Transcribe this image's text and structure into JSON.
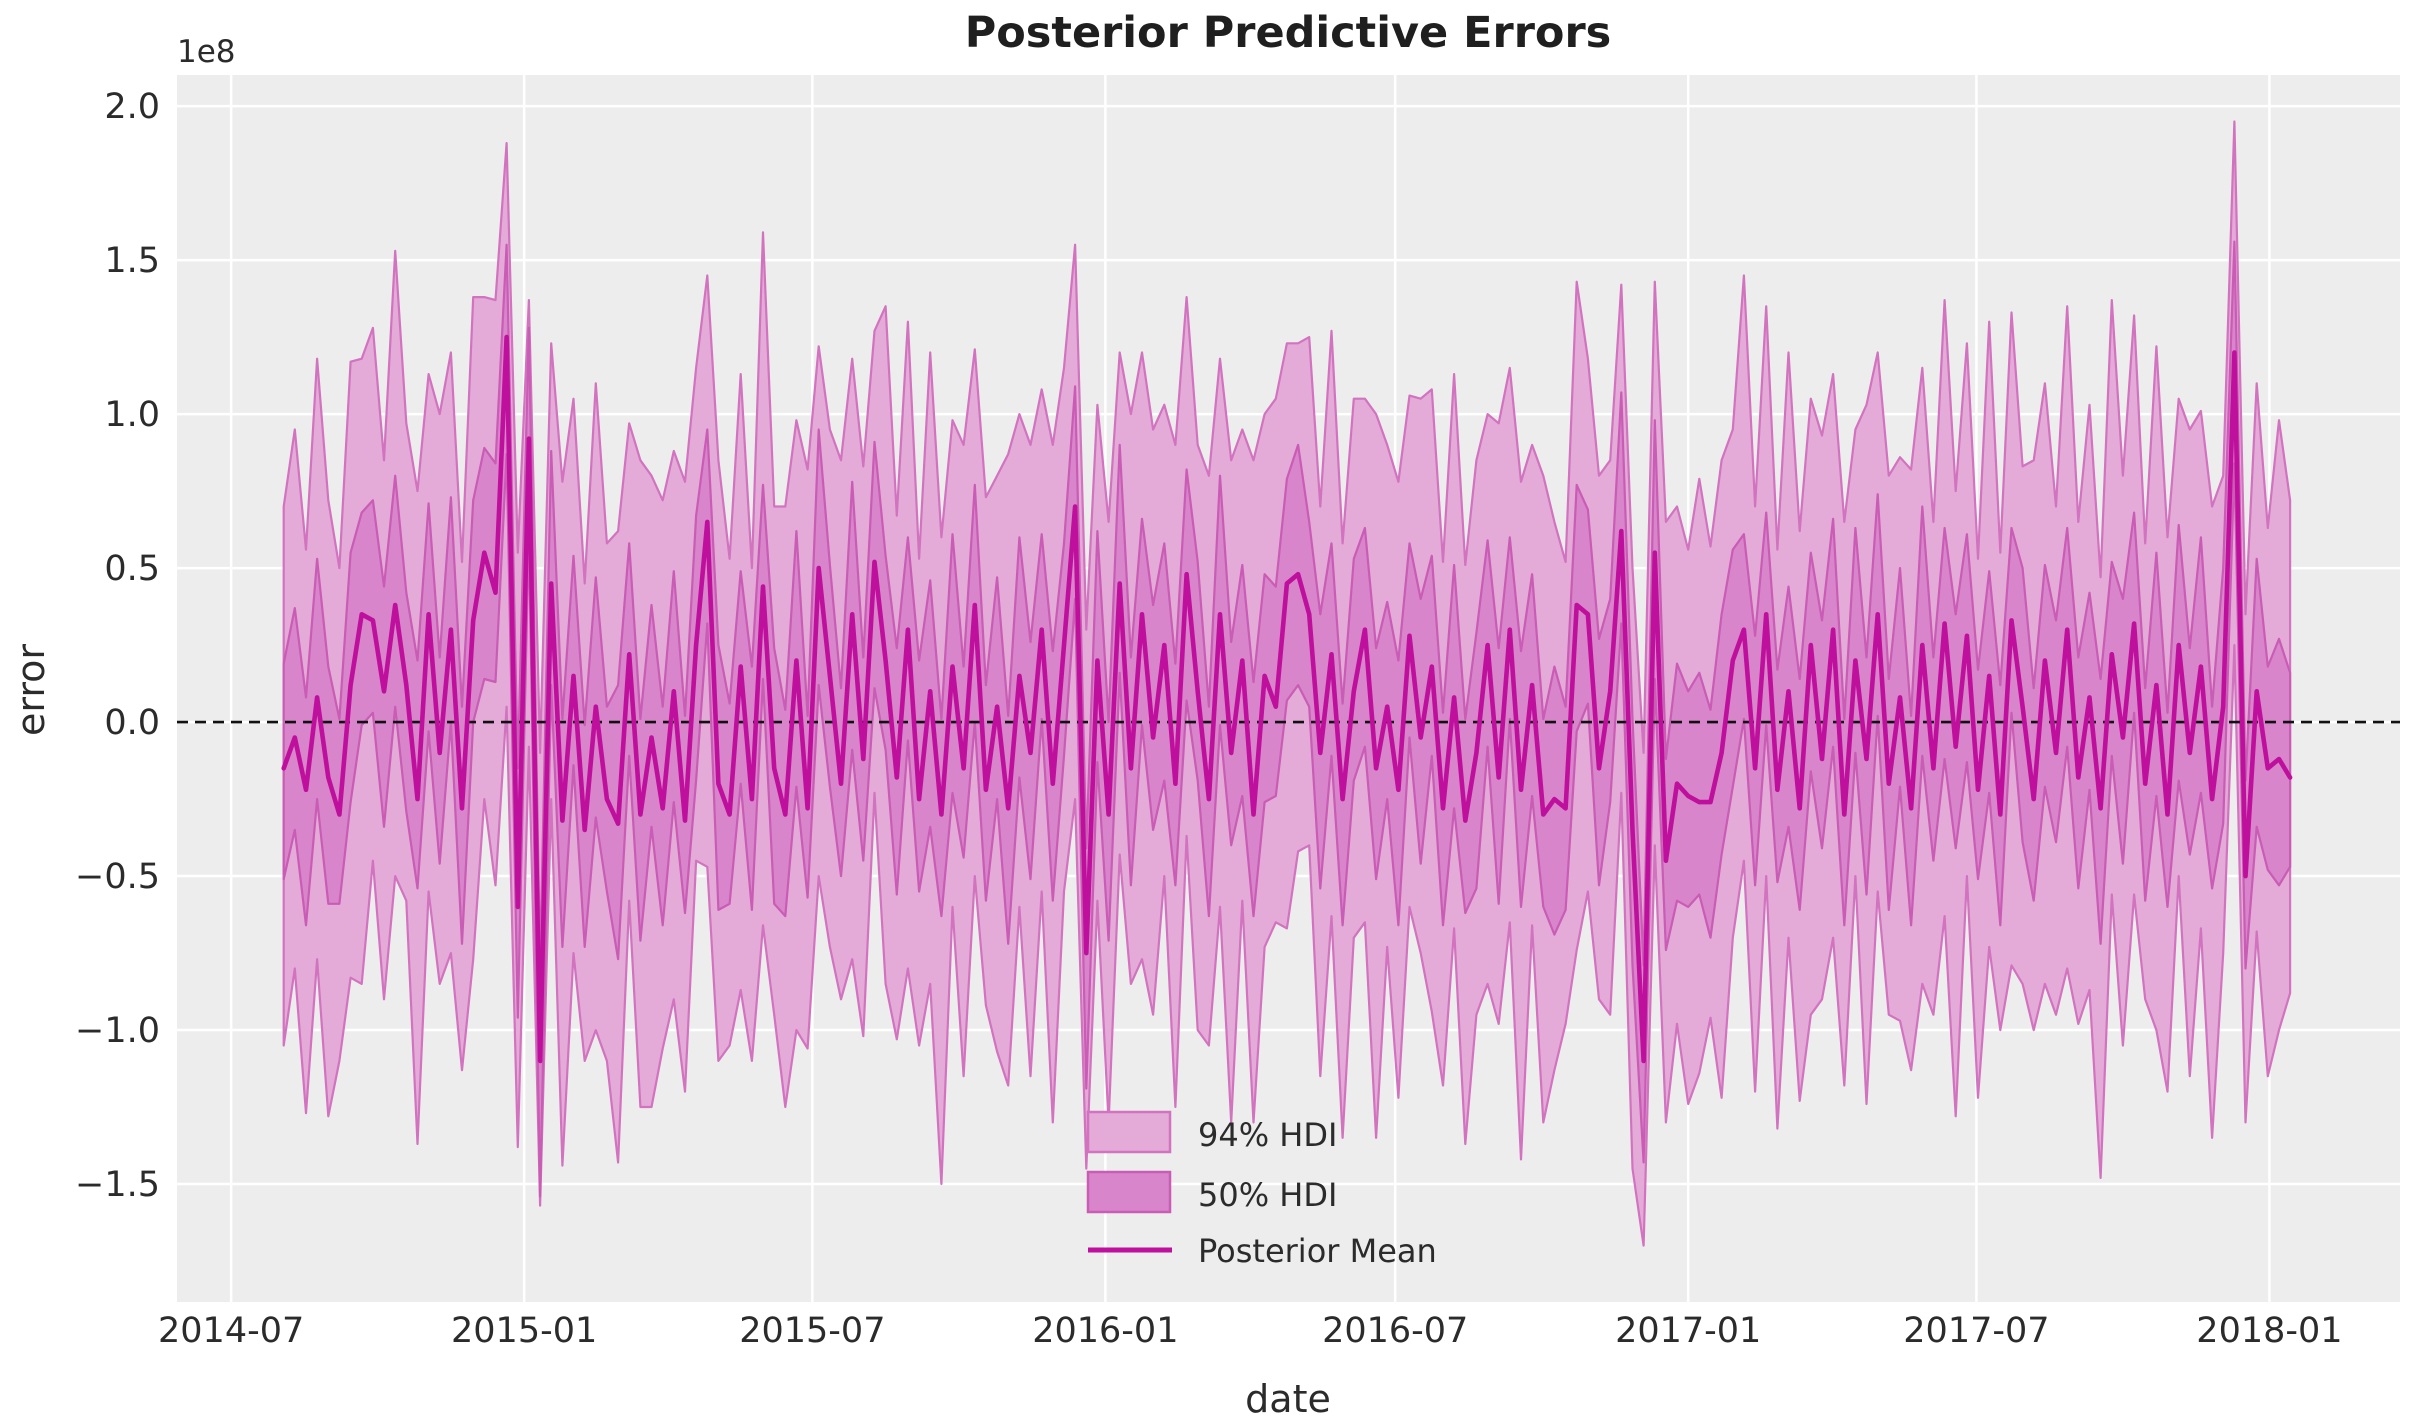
{
  "chart_data": {
    "type": "area",
    "title": "Posterior Predictive Errors",
    "xlabel": "date",
    "ylabel": "error",
    "y_offset_text": "1e8",
    "y_scale_factor": 100000000,
    "axis": {
      "x_min": "2014-05-28",
      "x_max": "2018-03-24",
      "y_min": -1.883,
      "y_max": 2.101,
      "grid": true
    },
    "x_ticks": [
      {
        "date": "2014-07-01",
        "label": "2014-07"
      },
      {
        "date": "2015-01-01",
        "label": "2015-01"
      },
      {
        "date": "2015-07-01",
        "label": "2015-07"
      },
      {
        "date": "2016-01-01",
        "label": "2016-01"
      },
      {
        "date": "2016-07-01",
        "label": "2016-07"
      },
      {
        "date": "2017-01-01",
        "label": "2017-01"
      },
      {
        "date": "2017-07-01",
        "label": "2017-07"
      },
      {
        "date": "2018-01-01",
        "label": "2018-01"
      }
    ],
    "y_ticks": [
      {
        "v": 2.0,
        "label": "2.0"
      },
      {
        "v": 1.5,
        "label": "1.5"
      },
      {
        "v": 1.0,
        "label": "1.0"
      },
      {
        "v": 0.5,
        "label": "0.5"
      },
      {
        "v": 0.0,
        "label": "0.0"
      },
      {
        "v": -0.5,
        "label": "−0.5"
      },
      {
        "v": -1.0,
        "label": "−1.0"
      },
      {
        "v": -1.5,
        "label": "−1.5"
      }
    ],
    "zero_line": {
      "value": 0.0,
      "style": "dashed",
      "color": "#111111"
    },
    "colors": {
      "figure_bg": "#ffffff",
      "axes_bg": "#ededed",
      "grid": "#ffffff",
      "band94_fill": "#e5abd8",
      "band94_edge": "#d173bf",
      "band50_fill": "#d985cb",
      "band50_edge": "#c95cb4",
      "mean_line": "#be109c",
      "text": "#2b2b2b"
    },
    "legend": {
      "position": "lower center",
      "entries": [
        {
          "label": "94% HDI",
          "type": "patch",
          "fill": "#e5abd8",
          "edge": "#d173bf"
        },
        {
          "label": "50% HDI",
          "type": "patch",
          "fill": "#d985cb",
          "edge": "#c95cb4"
        },
        {
          "label": "Posterior Mean",
          "type": "line",
          "color": "#be109c"
        }
      ]
    },
    "series": {
      "x_start": "2014-08-03",
      "x_step_days": 7,
      "n": 181,
      "mean": [
        -0.15,
        -0.05,
        -0.22,
        0.08,
        -0.18,
        -0.3,
        0.12,
        0.35,
        0.33,
        0.1,
        0.38,
        0.12,
        -0.25,
        0.35,
        -0.1,
        0.3,
        -0.28,
        0.33,
        0.55,
        0.42,
        1.25,
        -0.6,
        0.92,
        -1.1,
        0.45,
        -0.32,
        0.15,
        -0.35,
        0.05,
        -0.25,
        -0.33,
        0.22,
        -0.3,
        -0.05,
        -0.28,
        0.1,
        -0.32,
        0.25,
        0.65,
        -0.2,
        -0.3,
        0.18,
        -0.25,
        0.44,
        -0.15,
        -0.3,
        0.2,
        -0.28,
        0.5,
        0.15,
        -0.2,
        0.35,
        -0.12,
        0.52,
        0.2,
        -0.18,
        0.3,
        -0.25,
        0.1,
        -0.3,
        0.18,
        -0.15,
        0.38,
        -0.22,
        0.05,
        -0.28,
        0.15,
        -0.1,
        0.3,
        -0.2,
        0.25,
        0.7,
        -0.75,
        0.2,
        -0.3,
        0.45,
        -0.15,
        0.35,
        -0.05,
        0.25,
        -0.2,
        0.48,
        0.1,
        -0.25,
        0.35,
        -0.1,
        0.2,
        -0.3,
        0.15,
        0.05,
        0.45,
        0.48,
        0.35,
        -0.1,
        0.22,
        -0.25,
        0.1,
        0.3,
        -0.15,
        0.05,
        -0.22,
        0.28,
        -0.05,
        0.18,
        -0.28,
        0.08,
        -0.32,
        -0.1,
        0.25,
        -0.18,
        0.3,
        -0.22,
        0.12,
        -0.3,
        -0.25,
        -0.28,
        0.38,
        0.35,
        -0.15,
        0.1,
        0.62,
        -0.35,
        -1.1,
        0.55,
        -0.45,
        -0.2,
        -0.24,
        -0.26,
        -0.26,
        -0.1,
        0.2,
        0.3,
        -0.15,
        0.35,
        -0.22,
        0.1,
        -0.28,
        0.25,
        -0.12,
        0.3,
        -0.3,
        0.2,
        -0.12,
        0.35,
        -0.2,
        0.08,
        -0.28,
        0.25,
        -0.15,
        0.32,
        -0.08,
        0.28,
        -0.22,
        0.15,
        -0.3,
        0.33,
        0.05,
        -0.25,
        0.2,
        -0.1,
        0.3,
        -0.18,
        0.08,
        -0.28,
        0.22,
        -0.05,
        0.32,
        -0.2,
        0.12,
        -0.3,
        0.25,
        -0.1,
        0.18,
        -0.25,
        0.05,
        1.2,
        -0.5,
        0.1,
        -0.15,
        -0.12,
        -0.18
      ],
      "hdi50_upper_offset": [
        0.34,
        0.42,
        0.3,
        0.45,
        0.36,
        0.31,
        0.43,
        0.33,
        0.39,
        0.34,
        0.42,
        0.3,
        0.45,
        0.36,
        0.31,
        0.43,
        0.33,
        0.39,
        0.34,
        0.42,
        0.3,
        0.45,
        0.36,
        0.31,
        0.43,
        0.33,
        0.39,
        0.34,
        0.42,
        0.3,
        0.45,
        0.36,
        0.31,
        0.43,
        0.33,
        0.39,
        0.34,
        0.42,
        0.3,
        0.45,
        0.36,
        0.31,
        0.43,
        0.33,
        0.39,
        0.34,
        0.42,
        0.3,
        0.45,
        0.36,
        0.31,
        0.43,
        0.33,
        0.39,
        0.34,
        0.42,
        0.3,
        0.45,
        0.36,
        0.31,
        0.43,
        0.33,
        0.39,
        0.34,
        0.42,
        0.3,
        0.45,
        0.36,
        0.31,
        0.43,
        0.33,
        0.39,
        0.34,
        0.42,
        0.3,
        0.45,
        0.36,
        0.31,
        0.43,
        0.33,
        0.39,
        0.34,
        0.42,
        0.3,
        0.45,
        0.36,
        0.31,
        0.43,
        0.33,
        0.39,
        0.34,
        0.42,
        0.3,
        0.45,
        0.36,
        0.31,
        0.43,
        0.33,
        0.39,
        0.34,
        0.42,
        0.3,
        0.45,
        0.36,
        0.31,
        0.43,
        0.33,
        0.39,
        0.34,
        0.42,
        0.3,
        0.45,
        0.36,
        0.31,
        0.43,
        0.33,
        0.39,
        0.34,
        0.42,
        0.3,
        0.45,
        0.36,
        0.31,
        0.43,
        0.33,
        0.39,
        0.34,
        0.42,
        0.3,
        0.45,
        0.36,
        0.31,
        0.43,
        0.33,
        0.39,
        0.34,
        0.42,
        0.3,
        0.45,
        0.36,
        0.31,
        0.43,
        0.33,
        0.39,
        0.34,
        0.42,
        0.3,
        0.45,
        0.36,
        0.31,
        0.43,
        0.33,
        0.39,
        0.34,
        0.42,
        0.3,
        0.45,
        0.36,
        0.31,
        0.43,
        0.33,
        0.39,
        0.34,
        0.42,
        0.3,
        0.45,
        0.36,
        0.31,
        0.43,
        0.33,
        0.39,
        0.34,
        0.42,
        0.3,
        0.45,
        0.36,
        0.31,
        0.43,
        0.33,
        0.39,
        0.34
      ],
      "hdi50_lower_offset": [
        0.36,
        0.3,
        0.44,
        0.33,
        0.41,
        0.29,
        0.38,
        0.36,
        0.3,
        0.44,
        0.33,
        0.41,
        0.29,
        0.38,
        0.36,
        0.3,
        0.44,
        0.33,
        0.41,
        0.29,
        0.38,
        0.36,
        0.3,
        0.44,
        0.33,
        0.41,
        0.29,
        0.38,
        0.36,
        0.3,
        0.44,
        0.33,
        0.41,
        0.29,
        0.38,
        0.36,
        0.3,
        0.44,
        0.33,
        0.41,
        0.29,
        0.38,
        0.36,
        0.3,
        0.44,
        0.33,
        0.41,
        0.29,
        0.38,
        0.36,
        0.3,
        0.44,
        0.33,
        0.41,
        0.29,
        0.38,
        0.36,
        0.3,
        0.44,
        0.33,
        0.41,
        0.29,
        0.38,
        0.36,
        0.3,
        0.44,
        0.33,
        0.41,
        0.29,
        0.38,
        0.36,
        0.3,
        0.44,
        0.33,
        0.41,
        0.29,
        0.38,
        0.36,
        0.3,
        0.44,
        0.33,
        0.41,
        0.29,
        0.38,
        0.36,
        0.3,
        0.44,
        0.33,
        0.41,
        0.29,
        0.38,
        0.36,
        0.3,
        0.44,
        0.33,
        0.41,
        0.29,
        0.38,
        0.36,
        0.3,
        0.44,
        0.33,
        0.41,
        0.29,
        0.38,
        0.36,
        0.3,
        0.44,
        0.33,
        0.41,
        0.29,
        0.38,
        0.36,
        0.3,
        0.44,
        0.33,
        0.41,
        0.29,
        0.38,
        0.36,
        0.3,
        0.44,
        0.33,
        0.41,
        0.29,
        0.38,
        0.36,
        0.3,
        0.44,
        0.33,
        0.41,
        0.29,
        0.38,
        0.36,
        0.3,
        0.44,
        0.33,
        0.41,
        0.29,
        0.38,
        0.36,
        0.3,
        0.44,
        0.33,
        0.41,
        0.29,
        0.38,
        0.36,
        0.3,
        0.44,
        0.33,
        0.41,
        0.29,
        0.38,
        0.36,
        0.3,
        0.44,
        0.33,
        0.41,
        0.29,
        0.38,
        0.36,
        0.3,
        0.44,
        0.33,
        0.41,
        0.29,
        0.38,
        0.36,
        0.3,
        0.44,
        0.33,
        0.41,
        0.29,
        0.38,
        0.36,
        0.3,
        0.44,
        0.33,
        0.41,
        0.29
      ],
      "hdi94_upper_offset": [
        0.85,
        1.0,
        0.78,
        1.1,
        0.9,
        0.8,
        1.05,
        0.83,
        0.95,
        0.75,
        1.15,
        0.85,
        1.0,
        0.78,
        1.1,
        0.9,
        0.8,
        1.05,
        0.83,
        0.95,
        0.63,
        1.15,
        0.45,
        1.0,
        0.78,
        1.1,
        0.9,
        0.8,
        1.05,
        0.83,
        0.95,
        0.75,
        1.15,
        0.85,
        1.0,
        0.78,
        1.1,
        0.9,
        0.8,
        1.05,
        0.83,
        0.95,
        0.75,
        1.15,
        0.85,
        1.0,
        0.78,
        1.1,
        0.72,
        0.8,
        1.05,
        0.83,
        0.95,
        0.75,
        1.15,
        0.85,
        1.0,
        0.78,
        1.1,
        0.9,
        0.8,
        1.05,
        0.83,
        0.95,
        0.75,
        1.15,
        0.85,
        1.0,
        0.78,
        1.1,
        0.9,
        0.85,
        1.05,
        0.83,
        0.95,
        0.75,
        1.15,
        0.85,
        1.0,
        0.78,
        1.1,
        0.9,
        0.8,
        1.05,
        0.83,
        0.95,
        0.75,
        1.15,
        0.85,
        1.0,
        0.78,
        0.75,
        0.9,
        0.8,
        1.05,
        0.83,
        0.95,
        0.75,
        1.15,
        0.85,
        1.0,
        0.78,
        1.1,
        0.9,
        0.8,
        1.05,
        0.83,
        0.95,
        0.75,
        1.15,
        0.85,
        1.0,
        0.78,
        1.1,
        0.9,
        0.8,
        1.05,
        0.83,
        0.95,
        0.75,
        0.8,
        0.85,
        1.0,
        0.88,
        1.1,
        0.9,
        0.8,
        1.05,
        0.83,
        0.95,
        0.75,
        1.15,
        0.85,
        1.0,
        0.78,
        1.1,
        0.9,
        0.8,
        1.05,
        0.83,
        0.95,
        0.75,
        1.15,
        0.85,
        1.0,
        0.78,
        1.1,
        0.9,
        0.8,
        1.05,
        0.83,
        0.95,
        0.75,
        1.15,
        0.85,
        1.0,
        0.78,
        1.1,
        0.9,
        0.8,
        1.05,
        0.83,
        0.95,
        0.75,
        1.15,
        0.85,
        1.0,
        0.78,
        1.1,
        0.9,
        0.8,
        1.05,
        0.83,
        0.95,
        0.75,
        0.75,
        0.85,
        1.0,
        0.78,
        1.1,
        0.9
      ],
      "hdi94_lower_offset": [
        0.9,
        0.75,
        1.05,
        0.85,
        1.1,
        0.8,
        0.95,
        1.2,
        0.78,
        1.0,
        0.88,
        0.7,
        1.12,
        0.9,
        0.75,
        1.05,
        0.85,
        1.1,
        0.8,
        0.95,
        1.2,
        0.78,
        1.0,
        0.47,
        0.7,
        1.12,
        0.9,
        0.75,
        1.05,
        0.85,
        1.1,
        0.8,
        0.95,
        1.2,
        0.78,
        1.0,
        0.88,
        0.7,
        1.12,
        0.9,
        0.75,
        1.05,
        0.85,
        1.1,
        0.8,
        0.95,
        1.2,
        0.78,
        1.0,
        0.88,
        0.7,
        1.12,
        0.9,
        0.75,
        1.05,
        0.85,
        1.1,
        0.8,
        0.95,
        1.2,
        0.78,
        1.0,
        0.88,
        0.7,
        1.12,
        0.9,
        0.75,
        1.05,
        0.85,
        1.1,
        0.8,
        0.95,
        0.7,
        0.78,
        1.0,
        0.88,
        0.7,
        1.12,
        0.9,
        0.75,
        1.05,
        0.85,
        1.1,
        0.8,
        0.95,
        1.2,
        0.78,
        1.0,
        0.88,
        0.7,
        1.12,
        0.9,
        0.75,
        1.05,
        0.85,
        1.1,
        0.8,
        0.95,
        1.2,
        0.78,
        1.0,
        0.88,
        0.7,
        1.12,
        0.9,
        0.75,
        1.05,
        0.85,
        1.1,
        0.8,
        0.95,
        1.2,
        0.78,
        1.0,
        0.88,
        0.7,
        1.12,
        0.9,
        0.75,
        1.05,
        0.85,
        1.1,
        0.6,
        0.95,
        0.85,
        0.78,
        1.0,
        0.88,
        0.7,
        1.12,
        0.9,
        0.75,
        1.05,
        0.85,
        1.1,
        0.8,
        0.95,
        1.2,
        0.78,
        1.0,
        0.88,
        0.7,
        1.12,
        0.9,
        0.75,
        1.05,
        0.85,
        1.1,
        0.8,
        0.95,
        1.2,
        0.78,
        1.0,
        0.88,
        0.7,
        1.12,
        0.9,
        0.75,
        1.05,
        0.85,
        1.1,
        0.8,
        0.95,
        1.2,
        0.78,
        1.0,
        0.88,
        0.7,
        1.12,
        0.9,
        0.75,
        1.05,
        0.85,
        1.1,
        0.8,
        0.95,
        0.8,
        0.78,
        1.0,
        0.88,
        0.7
      ]
    }
  }
}
